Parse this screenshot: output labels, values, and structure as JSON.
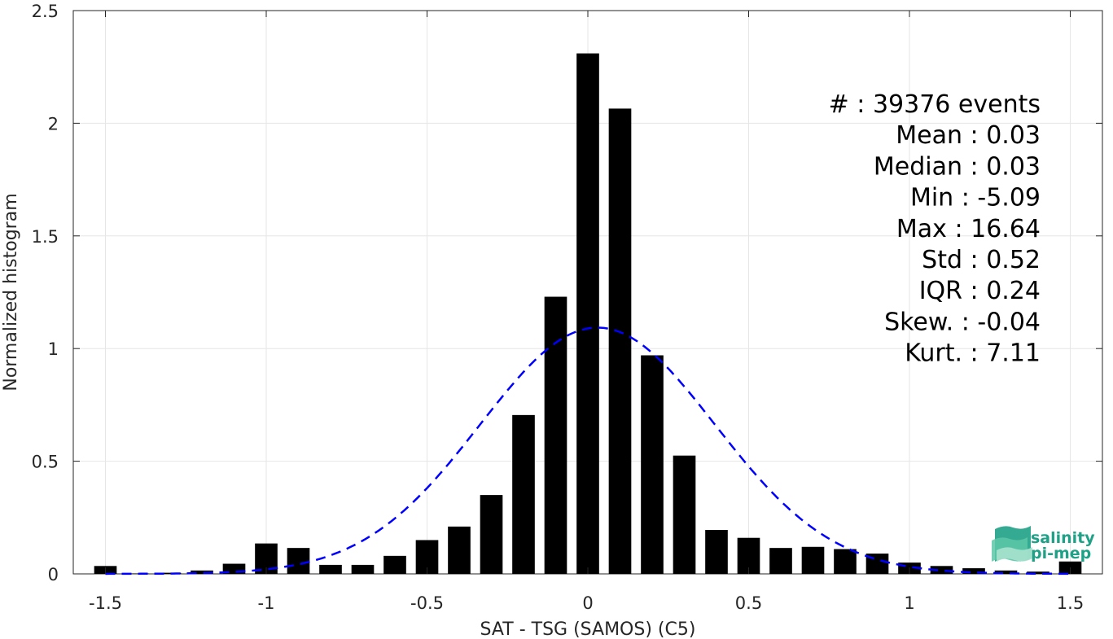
{
  "chart_data": {
    "type": "bar",
    "title": "",
    "xlabel": "SAT - TSG (SAMOS) (C5)",
    "ylabel": "Normalized histogram",
    "xlim": [
      -1.6,
      1.6
    ],
    "ylim": [
      0,
      2.5
    ],
    "x_ticks": [
      -1.5,
      -1,
      -0.5,
      0,
      0.5,
      1,
      1.5
    ],
    "x_tick_labels": [
      "-1.5",
      "-1",
      "-0.5",
      "0",
      "0.5",
      "1",
      "1.5"
    ],
    "y_ticks": [
      0,
      0.5,
      1,
      1.5,
      2,
      2.5
    ],
    "y_tick_labels": [
      "0",
      "0.5",
      "1",
      "1.5",
      "2",
      "2.5"
    ],
    "grid": true,
    "bin_width": 0.1,
    "bar_color": "#000000",
    "bins": [
      {
        "x": -1.5,
        "value": 0.035
      },
      {
        "x": -1.4,
        "value": 0.002
      },
      {
        "x": -1.3,
        "value": 0.005
      },
      {
        "x": -1.2,
        "value": 0.015
      },
      {
        "x": -1.1,
        "value": 0.045
      },
      {
        "x": -1.0,
        "value": 0.135
      },
      {
        "x": -0.9,
        "value": 0.115
      },
      {
        "x": -0.8,
        "value": 0.04
      },
      {
        "x": -0.7,
        "value": 0.04
      },
      {
        "x": -0.6,
        "value": 0.08
      },
      {
        "x": -0.5,
        "value": 0.15
      },
      {
        "x": -0.4,
        "value": 0.21
      },
      {
        "x": -0.3,
        "value": 0.35
      },
      {
        "x": -0.2,
        "value": 0.705
      },
      {
        "x": -0.1,
        "value": 1.23
      },
      {
        "x": 0.0,
        "value": 2.31
      },
      {
        "x": 0.1,
        "value": 2.065
      },
      {
        "x": 0.2,
        "value": 0.97
      },
      {
        "x": 0.3,
        "value": 0.525
      },
      {
        "x": 0.4,
        "value": 0.195
      },
      {
        "x": 0.5,
        "value": 0.16
      },
      {
        "x": 0.6,
        "value": 0.115
      },
      {
        "x": 0.7,
        "value": 0.12
      },
      {
        "x": 0.8,
        "value": 0.11
      },
      {
        "x": 0.9,
        "value": 0.09
      },
      {
        "x": 1.0,
        "value": 0.05
      },
      {
        "x": 1.1,
        "value": 0.035
      },
      {
        "x": 1.2,
        "value": 0.025
      },
      {
        "x": 1.3,
        "value": 0.015
      },
      {
        "x": 1.4,
        "value": 0.01
      },
      {
        "x": 1.5,
        "value": 0.055
      }
    ],
    "fit_curve": {
      "type": "gaussian",
      "mean": 0.03,
      "std": 0.365,
      "x_range": [
        -1.5,
        1.5
      ],
      "color": "#0000ff",
      "style": "dashed"
    },
    "annotations": [
      "#  : 39376 events",
      "Mean : 0.03",
      "Median : 0.03",
      "Min : -5.09",
      "Max : 16.64",
      "Std : 0.52",
      "IQR : 0.24",
      "Skew. : -0.04",
      "Kurt. : 7.11"
    ],
    "annotation_placement": "top-right"
  },
  "logo": {
    "line1": "salinity",
    "line2": "pi-mep",
    "color": "#1fa187"
  }
}
